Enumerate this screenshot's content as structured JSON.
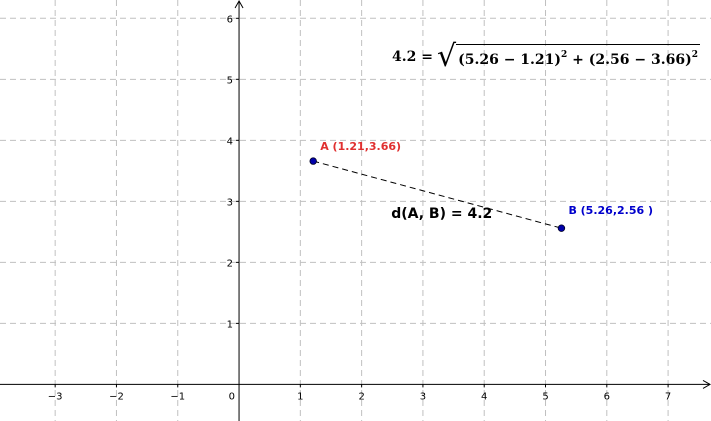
{
  "chart_data": {
    "type": "scatter",
    "xlim": [
      -3.9,
      7.7
    ],
    "ylim": [
      -0.6,
      6.3
    ],
    "grid": true,
    "x_ticks": [
      "−3",
      "−2",
      "−1",
      "0",
      "1",
      "2",
      "3",
      "4",
      "5",
      "6",
      "7"
    ],
    "y_ticks": [
      "1",
      "2",
      "3",
      "4",
      "5",
      "6"
    ],
    "points": [
      {
        "name": "A",
        "x": 1.21,
        "y": 3.66,
        "label": "A (1.21,3.66)",
        "color": "#e03030"
      },
      {
        "name": "B",
        "x": 5.26,
        "y": 2.56,
        "label": "B (5.26,2.56 )",
        "color": "#0000cc"
      }
    ],
    "segment_label": "d(A, B)  =  4.2"
  },
  "formula": {
    "lhs": "4.2 =",
    "radicand_1": "(5.26 − 1.21)",
    "exp_1": "2",
    "plus": " + ",
    "radicand_2": "(2.56 − 3.66)",
    "exp_2": "2"
  },
  "colors": {
    "point_fill": "#0000aa",
    "grid": "#c0c0c0",
    "axis": "#000000"
  }
}
